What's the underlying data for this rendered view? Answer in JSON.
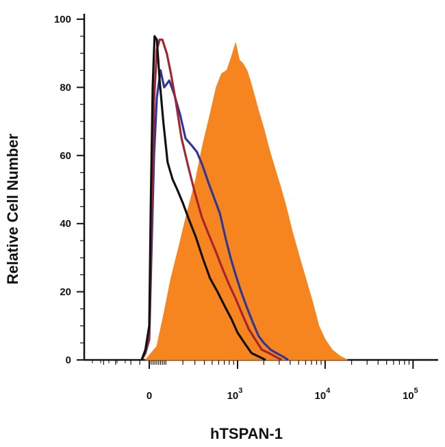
{
  "chart_data": {
    "type": "area",
    "xlabel": "hTSPAN-1",
    "ylabel": "Relative Cell Number",
    "x_scale": "biexponential",
    "ylim": [
      0,
      100
    ],
    "y_ticks": [
      "0",
      "20",
      "40",
      "60",
      "80",
      "100"
    ],
    "x_ticks": [
      {
        "value": 0,
        "base": "0",
        "exp": ""
      },
      {
        "value": 1000,
        "base": "10",
        "exp": "3"
      },
      {
        "value": 10000,
        "base": "10",
        "exp": "4"
      },
      {
        "value": 100000,
        "base": "10",
        "exp": "5"
      }
    ],
    "grid": false,
    "legend": "none",
    "series": [
      {
        "color": "#f7851f",
        "style": "filled",
        "points": [
          [
            -20,
            0
          ],
          [
            40,
            4
          ],
          [
            80,
            14
          ],
          [
            120,
            24
          ],
          [
            170,
            33
          ],
          [
            230,
            43
          ],
          [
            300,
            52
          ],
          [
            380,
            63
          ],
          [
            470,
            72
          ],
          [
            560,
            80
          ],
          [
            650,
            84
          ],
          [
            750,
            85
          ],
          [
            850,
            89
          ],
          [
            950,
            93
          ],
          [
            1050,
            88
          ],
          [
            1150,
            87
          ],
          [
            1280,
            85
          ],
          [
            1400,
            82
          ],
          [
            1550,
            78
          ],
          [
            1750,
            73
          ],
          [
            2000,
            68
          ],
          [
            2300,
            62
          ],
          [
            2700,
            56
          ],
          [
            3100,
            51
          ],
          [
            3600,
            45
          ],
          [
            4200,
            38
          ],
          [
            5000,
            31
          ],
          [
            6000,
            24
          ],
          [
            7200,
            17
          ],
          [
            8500,
            10
          ],
          [
            10000,
            6
          ],
          [
            12000,
            3
          ],
          [
            15000,
            1
          ],
          [
            18000,
            0
          ]
        ]
      },
      {
        "color": "#2e3796",
        "style": "line",
        "points": [
          [
            -40,
            0
          ],
          [
            -20,
            2
          ],
          [
            0,
            6
          ],
          [
            10,
            28
          ],
          [
            25,
            60
          ],
          [
            40,
            77
          ],
          [
            60,
            85
          ],
          [
            80,
            80
          ],
          [
            110,
            82
          ],
          [
            140,
            78
          ],
          [
            180,
            72
          ],
          [
            220,
            65
          ],
          [
            270,
            63
          ],
          [
            320,
            61
          ],
          [
            380,
            57
          ],
          [
            450,
            52
          ],
          [
            520,
            48
          ],
          [
            620,
            43
          ],
          [
            720,
            36
          ],
          [
            830,
            30
          ],
          [
            950,
            25
          ],
          [
            1100,
            20
          ],
          [
            1300,
            15
          ],
          [
            1500,
            11
          ],
          [
            1750,
            7
          ],
          [
            2000,
            5
          ],
          [
            2400,
            3
          ],
          [
            2800,
            2
          ],
          [
            3300,
            1
          ],
          [
            3800,
            0
          ]
        ]
      },
      {
        "color": "#a3262e",
        "style": "line",
        "points": [
          [
            -40,
            0
          ],
          [
            -20,
            2
          ],
          [
            0,
            7
          ],
          [
            10,
            35
          ],
          [
            25,
            76
          ],
          [
            40,
            91
          ],
          [
            55,
            94
          ],
          [
            70,
            94
          ],
          [
            95,
            90
          ],
          [
            120,
            84
          ],
          [
            150,
            76
          ],
          [
            190,
            65
          ],
          [
            240,
            57
          ],
          [
            300,
            49
          ],
          [
            370,
            42
          ],
          [
            450,
            37
          ],
          [
            550,
            32
          ],
          [
            660,
            27
          ],
          [
            800,
            22
          ],
          [
            950,
            18
          ],
          [
            1150,
            13
          ],
          [
            1350,
            9
          ],
          [
            1600,
            6
          ],
          [
            1900,
            3
          ],
          [
            2300,
            2
          ],
          [
            2700,
            1
          ],
          [
            3200,
            0
          ]
        ]
      },
      {
        "color": "#111111",
        "style": "line",
        "points": [
          [
            -40,
            0
          ],
          [
            -20,
            3
          ],
          [
            0,
            10
          ],
          [
            8,
            45
          ],
          [
            18,
            80
          ],
          [
            28,
            95
          ],
          [
            40,
            94
          ],
          [
            55,
            82
          ],
          [
            75,
            70
          ],
          [
            100,
            58
          ],
          [
            130,
            53
          ],
          [
            160,
            50
          ],
          [
            200,
            46
          ],
          [
            250,
            41
          ],
          [
            310,
            36
          ],
          [
            380,
            30
          ],
          [
            470,
            24
          ],
          [
            580,
            20
          ],
          [
            700,
            16
          ],
          [
            850,
            12
          ],
          [
            1000,
            8
          ],
          [
            1200,
            5
          ],
          [
            1450,
            2
          ],
          [
            1750,
            1
          ],
          [
            2100,
            0
          ]
        ]
      }
    ]
  }
}
